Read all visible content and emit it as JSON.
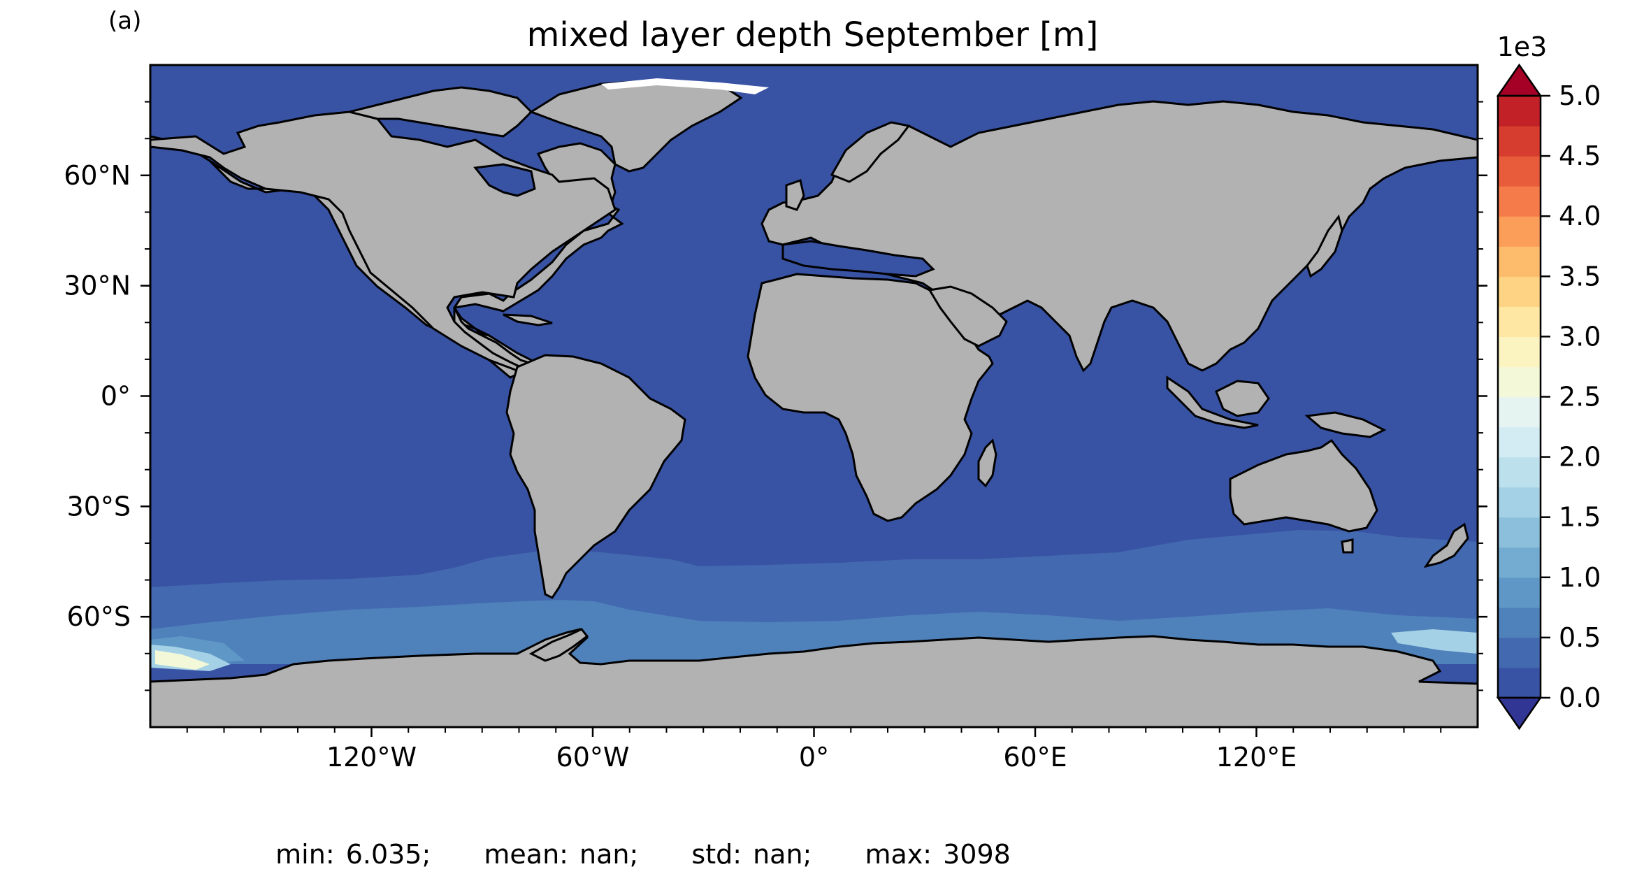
{
  "panel_label": "(a)",
  "title": "mixed layer depth September [m]",
  "map": {
    "projection": "PlateCarree",
    "lon_ticks": [
      {
        "lon": -120,
        "label": "120°W"
      },
      {
        "lon": -60,
        "label": "60°W"
      },
      {
        "lon": 0,
        "label": "0°"
      },
      {
        "lon": 60,
        "label": "60°E"
      },
      {
        "lon": 120,
        "label": "120°E"
      }
    ],
    "lat_ticks": [
      {
        "lat": 60,
        "label": "60°N"
      },
      {
        "lat": 30,
        "label": "30°N"
      },
      {
        "lat": 0,
        "label": "0°"
      },
      {
        "lat": -30,
        "label": "30°S"
      },
      {
        "lat": -60,
        "label": "60°S"
      }
    ],
    "land_color": "#b2b2b2",
    "ocean_base_color": "#3953a4"
  },
  "colorbar": {
    "multiplier_label": "1e3",
    "ticks": [
      "0.0",
      "0.5",
      "1.0",
      "1.5",
      "2.0",
      "2.5",
      "3.0",
      "3.5",
      "4.0",
      "4.5",
      "5.0"
    ],
    "extend": "both",
    "colors": [
      "#313695",
      "#3953a4",
      "#4369b0",
      "#4f81bb",
      "#5f98c7",
      "#74acd1",
      "#8cbfdb",
      "#a4d1e5",
      "#bce1ed",
      "#d3ecf4",
      "#e6f4f1",
      "#f3f9d8",
      "#fbf3c0",
      "#fee7a2",
      "#fed383",
      "#fdbb6c",
      "#fb9e5a",
      "#f57c4a",
      "#e85b3b",
      "#d73d2f",
      "#c22127",
      "#a50026"
    ]
  },
  "stats": {
    "min": "min: 6.035;",
    "mean": "mean: nan;",
    "std": "std: nan;",
    "max": "max: 3098"
  }
}
